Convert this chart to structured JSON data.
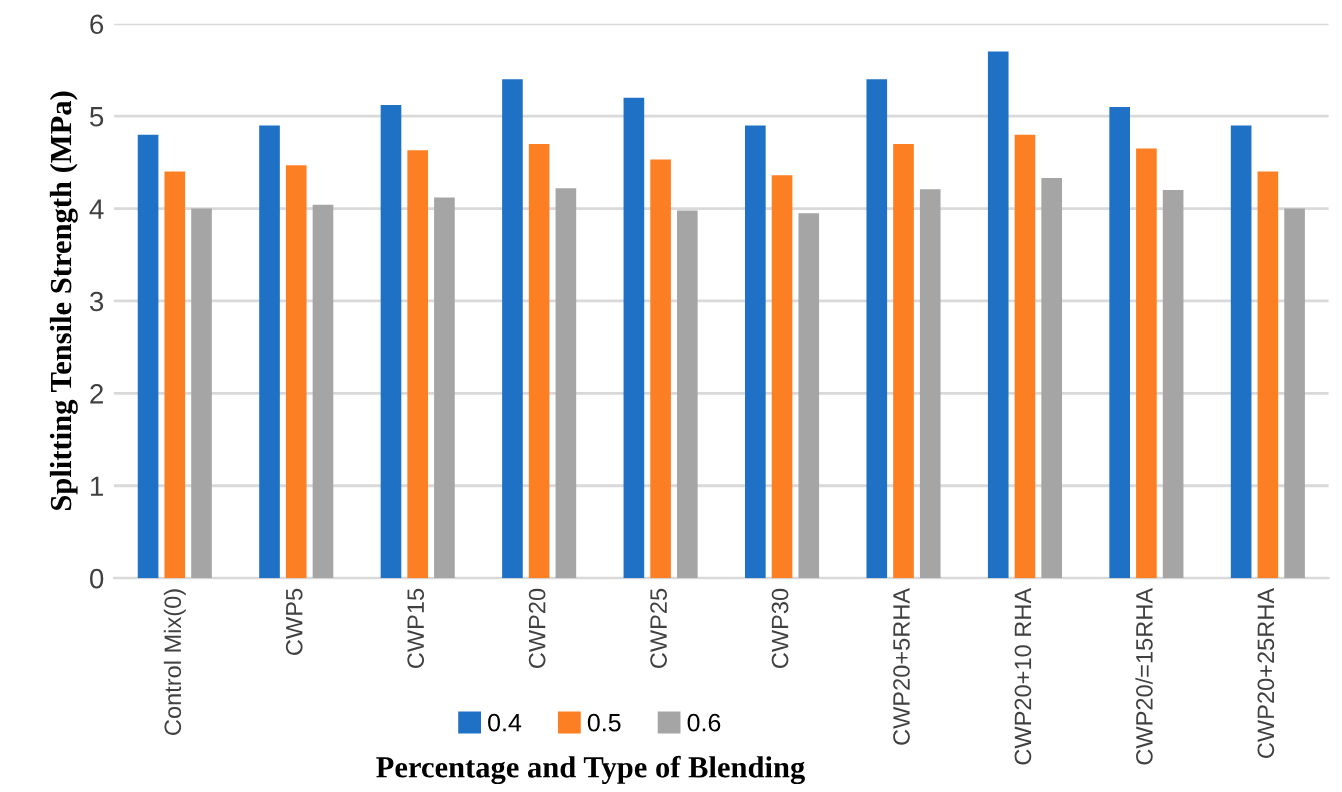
{
  "chart_data": {
    "type": "bar",
    "xlabel": "Percentage and Type of Blending",
    "ylabel": "Splitting Tensile Strength (MPa)",
    "categories": [
      "Control Mix(0)",
      "CWP5",
      "CWP15",
      "CWP20",
      "CWP25",
      "CWP30",
      "CWP20+5RHA",
      "CWP20+10 RHA",
      "CWP20/=15RHA",
      "CWP20+25RHA"
    ],
    "series": [
      {
        "name": "0.4",
        "color": "#1f71c6",
        "values": [
          4.8,
          4.9,
          5.12,
          5.4,
          5.2,
          4.9,
          5.4,
          5.7,
          5.1,
          4.9
        ]
      },
      {
        "name": "0.5",
        "color": "#fd7f23",
        "values": [
          4.4,
          4.47,
          4.63,
          4.7,
          4.53,
          4.36,
          4.7,
          4.8,
          4.65,
          4.4
        ]
      },
      {
        "name": "0.6",
        "color": "#a5a5a5",
        "values": [
          4.0,
          4.04,
          4.12,
          4.22,
          3.98,
          3.95,
          4.21,
          4.33,
          4.2,
          4.0
        ]
      }
    ],
    "ylim": [
      0,
      6
    ],
    "yticks": [
      0,
      1,
      2,
      3,
      4,
      5,
      6
    ],
    "grid": "y",
    "legend": "bottom"
  }
}
